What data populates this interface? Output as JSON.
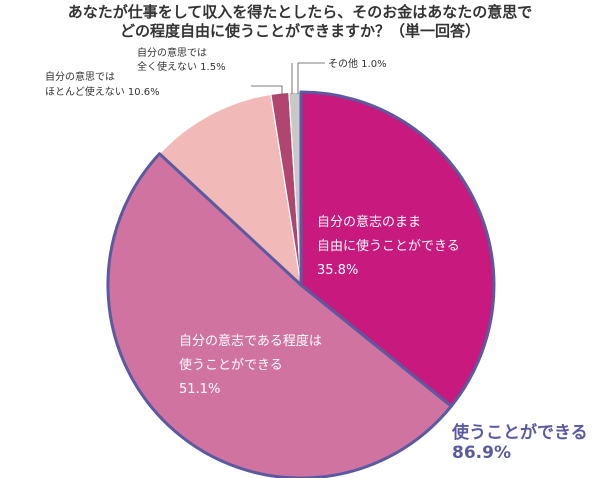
{
  "title": {
    "line1": "あなたが仕事をして収入を得たとしたら、そのお金はあなたの意思で",
    "line2": "どの程度自由に使うことができますか？（単一回答）"
  },
  "chart_data": {
    "type": "pie",
    "start_angle_deg": 0,
    "direction": "clockwise",
    "slices": [
      {
        "label_lines": [
          "自分の意志のまま",
          "自由に使うことができる"
        ],
        "value_text": "35.8%",
        "value": 35.8,
        "color": "#c8197f",
        "highlight": true
      },
      {
        "label_lines": [
          "自分の意志である程度は",
          "使うことができる"
        ],
        "value_text": "51.1%",
        "value": 51.1,
        "color": "#d173a0",
        "highlight": true
      },
      {
        "label_lines": [
          "自分の意思では",
          "ほとんど使えない"
        ],
        "value_text": "10.6%",
        "value": 10.6,
        "color": "#f1b9b7",
        "highlight": false
      },
      {
        "label_lines": [
          "自分の意思では",
          "全く使えない"
        ],
        "value_text": "1.5%",
        "value": 1.5,
        "color": "#b0466f",
        "highlight": false
      },
      {
        "label_lines": [
          "その他"
        ],
        "value_text": "1.0%",
        "value": 1.0,
        "color": "#c8c8c8",
        "highlight": false
      }
    ],
    "annotation": {
      "label": "使うことができる",
      "value_text": "86.9%",
      "color": "#5a5aa0"
    }
  }
}
